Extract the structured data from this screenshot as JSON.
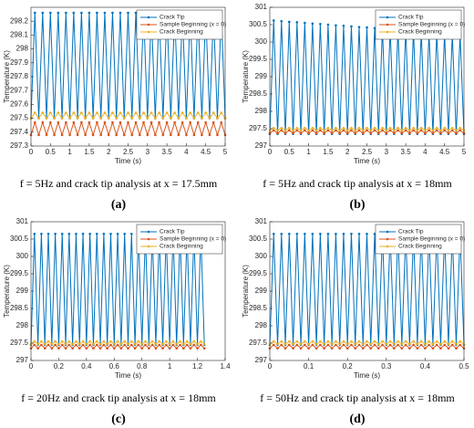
{
  "chart_data": [
    {
      "type": "line",
      "legend": "upper right",
      "grid": false,
      "xlabel": "Time (s)",
      "ylabel": "Temperature (K)",
      "caption": "f = 5Hz and crack tip analysis at x = 17.5mm",
      "label": "(a)",
      "xlim": [
        0,
        5
      ],
      "xticks": [
        0,
        0.5,
        1,
        1.5,
        2,
        2.5,
        3,
        3.5,
        4,
        4.5,
        5
      ],
      "ylim": [
        297.3,
        298.3
      ],
      "yticks": [
        297.3,
        297.4,
        297.5,
        297.6,
        297.7,
        297.8,
        297.9,
        298,
        298.1,
        298.2
      ],
      "x": [
        0,
        0.1,
        0.2,
        0.3,
        0.4,
        0.5,
        0.6,
        0.7,
        0.8,
        0.9,
        1,
        1.1,
        1.2,
        1.3,
        1.4,
        1.5,
        1.6,
        1.7,
        1.8,
        1.9,
        2,
        2.1,
        2.2,
        2.3,
        2.4,
        2.5,
        2.6,
        2.7,
        2.8,
        2.9,
        3,
        3.1,
        3.2,
        3.3,
        3.4,
        3.5,
        3.6,
        3.7,
        3.8,
        3.9,
        4,
        4.1,
        4.2,
        4.3,
        4.4,
        4.5,
        4.6,
        4.7,
        4.8,
        4.9,
        5
      ],
      "series": [
        {
          "name": "Crack Tip",
          "color": "#0072bd",
          "values": [
            297.5,
            298.26,
            297.5,
            298.26,
            297.5,
            298.26,
            297.5,
            298.26,
            297.5,
            298.26,
            297.5,
            298.26,
            297.5,
            298.26,
            297.5,
            298.26,
            297.5,
            298.26,
            297.5,
            298.26,
            297.5,
            298.26,
            297.5,
            298.26,
            297.5,
            298.26,
            297.5,
            298.26,
            297.5,
            298.26,
            297.5,
            298.26,
            297.5,
            298.26,
            297.5,
            298.26,
            297.5,
            298.26,
            297.5,
            298.26,
            297.5,
            298.26,
            297.5,
            298.26,
            297.5,
            298.26,
            297.5,
            298.26,
            297.5,
            298.26,
            297.5
          ]
        },
        {
          "name": "Sample Beginning (x = 0)",
          "color": "#d95319",
          "values": [
            297.38,
            297.47,
            297.38,
            297.47,
            297.38,
            297.47,
            297.38,
            297.47,
            297.38,
            297.47,
            297.38,
            297.47,
            297.38,
            297.47,
            297.38,
            297.47,
            297.38,
            297.47,
            297.38,
            297.47,
            297.38,
            297.47,
            297.38,
            297.47,
            297.38,
            297.47,
            297.38,
            297.47,
            297.38,
            297.47,
            297.38,
            297.47,
            297.38,
            297.47,
            297.38,
            297.47,
            297.38,
            297.47,
            297.38,
            297.47,
            297.38,
            297.47,
            297.38,
            297.47,
            297.38,
            297.47,
            297.38,
            297.47,
            297.38,
            297.47,
            297.38
          ]
        },
        {
          "name": "Crack Beginning",
          "color": "#edb120",
          "values": [
            297.5,
            297.54,
            297.5,
            297.54,
            297.5,
            297.54,
            297.5,
            297.54,
            297.5,
            297.54,
            297.5,
            297.54,
            297.5,
            297.54,
            297.5,
            297.54,
            297.5,
            297.54,
            297.5,
            297.54,
            297.5,
            297.54,
            297.5,
            297.54,
            297.5,
            297.54,
            297.5,
            297.54,
            297.5,
            297.54,
            297.5,
            297.54,
            297.5,
            297.54,
            297.5,
            297.54,
            297.5,
            297.54,
            297.5,
            297.54,
            297.5,
            297.54,
            297.5,
            297.54,
            297.5,
            297.54,
            297.5,
            297.54,
            297.5,
            297.54,
            297.5
          ]
        }
      ]
    },
    {
      "type": "line",
      "legend": "upper right",
      "grid": false,
      "xlabel": "Time (s)",
      "ylabel": "Temperature (K)",
      "caption": "f = 5Hz and crack tip analysis at x = 18mm",
      "label": "(b)",
      "xlim": [
        0,
        5
      ],
      "xticks": [
        0,
        0.5,
        1,
        1.5,
        2,
        2.5,
        3,
        3.5,
        4,
        4.5,
        5
      ],
      "ylim": [
        297,
        301
      ],
      "yticks": [
        297,
        297.5,
        298,
        298.5,
        299,
        299.5,
        300,
        300.5,
        301
      ],
      "x": [
        0,
        0.1,
        0.2,
        0.3,
        0.4,
        0.5,
        0.6,
        0.7,
        0.8,
        0.9,
        1,
        1.1,
        1.2,
        1.3,
        1.4,
        1.5,
        1.6,
        1.7,
        1.8,
        1.9,
        2,
        2.1,
        2.2,
        2.3,
        2.4,
        2.5,
        2.6,
        2.7,
        2.8,
        2.9,
        3,
        3.1,
        3.2,
        3.3,
        3.4,
        3.5,
        3.6,
        3.7,
        3.8,
        3.9,
        4,
        4.1,
        4.2,
        4.3,
        4.4,
        4.5,
        4.6,
        4.7,
        4.8,
        4.9,
        5
      ],
      "series": [
        {
          "name": "Crack Tip",
          "color": "#0072bd",
          "values": [
            297.35,
            300.62,
            297.35,
            300.6,
            297.35,
            300.58,
            297.35,
            300.57,
            297.35,
            300.55,
            297.35,
            300.53,
            297.35,
            300.52,
            297.35,
            300.5,
            297.35,
            300.48,
            297.35,
            300.47,
            297.35,
            300.45,
            297.35,
            300.43,
            297.35,
            300.42,
            297.35,
            300.4,
            297.35,
            300.38,
            297.35,
            300.37,
            297.35,
            300.35,
            297.35,
            300.33,
            297.35,
            300.32,
            297.35,
            300.3,
            297.35,
            300.28,
            297.35,
            300.27,
            297.35,
            300.25,
            297.35,
            300.23,
            297.35,
            300.22,
            297.35
          ]
        },
        {
          "name": "Sample Beginning (x = 0)",
          "color": "#d95319",
          "values": [
            297.37,
            297.45,
            297.37,
            297.45,
            297.37,
            297.45,
            297.37,
            297.45,
            297.37,
            297.45,
            297.37,
            297.45,
            297.37,
            297.45,
            297.37,
            297.45,
            297.37,
            297.45,
            297.37,
            297.45,
            297.37,
            297.45,
            297.37,
            297.45,
            297.37,
            297.45,
            297.37,
            297.45,
            297.37,
            297.45,
            297.37,
            297.45,
            297.37,
            297.45,
            297.37,
            297.45,
            297.37,
            297.45,
            297.37,
            297.45,
            297.37,
            297.45,
            297.37,
            297.45,
            297.37,
            297.45,
            297.37,
            297.45,
            297.37,
            297.45,
            297.37
          ]
        },
        {
          "name": "Crack Beginning",
          "color": "#edb120",
          "values": [
            297.45,
            297.52,
            297.45,
            297.52,
            297.45,
            297.52,
            297.45,
            297.52,
            297.45,
            297.52,
            297.45,
            297.52,
            297.45,
            297.52,
            297.45,
            297.52,
            297.45,
            297.52,
            297.45,
            297.52,
            297.45,
            297.52,
            297.45,
            297.52,
            297.45,
            297.52,
            297.45,
            297.52,
            297.45,
            297.52,
            297.45,
            297.52,
            297.45,
            297.52,
            297.45,
            297.52,
            297.45,
            297.52,
            297.45,
            297.52,
            297.45,
            297.52,
            297.45,
            297.52,
            297.45,
            297.52,
            297.45,
            297.52,
            297.45,
            297.52,
            297.45
          ]
        }
      ]
    },
    {
      "type": "line",
      "legend": "upper right",
      "grid": false,
      "xlabel": "Time (s)",
      "ylabel": "Temperature (K)",
      "caption": "f = 20Hz and crack tip analysis at x = 18mm",
      "label": "(c)",
      "xlim": [
        0,
        1.4
      ],
      "xticks": [
        0,
        0.2,
        0.4,
        0.6,
        0.8,
        1,
        1.2,
        1.4
      ],
      "ylim": [
        297,
        301
      ],
      "yticks": [
        297,
        297.5,
        298,
        298.5,
        299,
        299.5,
        300,
        300.5,
        301
      ],
      "x": [
        0,
        0.025,
        0.05,
        0.075,
        0.1,
        0.125,
        0.15,
        0.175,
        0.2,
        0.225,
        0.25,
        0.275,
        0.3,
        0.325,
        0.35,
        0.375,
        0.4,
        0.425,
        0.45,
        0.475,
        0.5,
        0.525,
        0.55,
        0.575,
        0.6,
        0.625,
        0.65,
        0.675,
        0.7,
        0.725,
        0.75,
        0.775,
        0.8,
        0.825,
        0.85,
        0.875,
        0.9,
        0.925,
        0.95,
        0.975,
        1,
        1.025,
        1.05,
        1.075,
        1.1,
        1.125,
        1.15,
        1.175,
        1.2,
        1.225,
        1.25
      ],
      "series": [
        {
          "name": "Crack Tip",
          "color": "#0072bd",
          "values": [
            297.45,
            300.65,
            297.45,
            300.65,
            297.45,
            300.65,
            297.45,
            300.65,
            297.45,
            300.65,
            297.45,
            300.65,
            297.45,
            300.65,
            297.45,
            300.65,
            297.45,
            300.65,
            297.45,
            300.65,
            297.45,
            300.65,
            297.45,
            300.65,
            297.45,
            300.65,
            297.45,
            300.65,
            297.45,
            300.65,
            297.45,
            300.65,
            297.45,
            300.65,
            297.45,
            300.65,
            297.45,
            300.65,
            297.45,
            300.65,
            297.45,
            300.65,
            297.45,
            300.65,
            297.45,
            300.65,
            297.45,
            300.65,
            297.45,
            300.65,
            297.45
          ]
        },
        {
          "name": "Sample Beginning (x = 0)",
          "color": "#d95319",
          "values": [
            297.35,
            297.45,
            297.35,
            297.45,
            297.35,
            297.45,
            297.35,
            297.45,
            297.35,
            297.45,
            297.35,
            297.45,
            297.35,
            297.45,
            297.35,
            297.45,
            297.35,
            297.45,
            297.35,
            297.45,
            297.35,
            297.45,
            297.35,
            297.45,
            297.35,
            297.45,
            297.35,
            297.45,
            297.35,
            297.45,
            297.35,
            297.45,
            297.35,
            297.45,
            297.35,
            297.45,
            297.35,
            297.45,
            297.35,
            297.45,
            297.35,
            297.45,
            297.35,
            297.45,
            297.35,
            297.45,
            297.35,
            297.45,
            297.35,
            297.45,
            297.35
          ]
        },
        {
          "name": "Crack Beginning",
          "color": "#edb120",
          "values": [
            297.47,
            297.55,
            297.47,
            297.55,
            297.47,
            297.55,
            297.47,
            297.55,
            297.47,
            297.55,
            297.47,
            297.55,
            297.47,
            297.55,
            297.47,
            297.55,
            297.47,
            297.55,
            297.47,
            297.55,
            297.47,
            297.55,
            297.47,
            297.55,
            297.47,
            297.55,
            297.47,
            297.55,
            297.47,
            297.55,
            297.47,
            297.55,
            297.47,
            297.55,
            297.47,
            297.55,
            297.47,
            297.55,
            297.47,
            297.55,
            297.47,
            297.55,
            297.47,
            297.55,
            297.47,
            297.55,
            297.47,
            297.55,
            297.47,
            297.55,
            297.47
          ]
        }
      ]
    },
    {
      "type": "line",
      "legend": "upper right",
      "grid": false,
      "xlabel": "Time (s)",
      "ylabel": "Temperature (K)",
      "caption": "f = 50Hz and crack tip analysis at x = 18mm",
      "label": "(d)",
      "xlim": [
        0,
        0.5
      ],
      "xticks": [
        0,
        0.1,
        0.2,
        0.3,
        0.4,
        0.5
      ],
      "ylim": [
        297,
        301
      ],
      "yticks": [
        297,
        297.5,
        298,
        298.5,
        299,
        299.5,
        300,
        300.5,
        301
      ],
      "x": [
        0,
        0.01,
        0.02,
        0.03,
        0.04,
        0.05,
        0.06,
        0.07,
        0.08,
        0.09,
        0.1,
        0.11,
        0.12,
        0.13,
        0.14,
        0.15,
        0.16,
        0.17,
        0.18,
        0.19,
        0.2,
        0.21,
        0.22,
        0.23,
        0.24,
        0.25,
        0.26,
        0.27,
        0.28,
        0.29,
        0.3,
        0.31,
        0.32,
        0.33,
        0.34,
        0.35,
        0.36,
        0.37,
        0.38,
        0.39,
        0.4,
        0.41,
        0.42,
        0.43,
        0.44,
        0.45,
        0.46,
        0.47,
        0.48,
        0.49,
        0.5
      ],
      "series": [
        {
          "name": "Crack Tip",
          "color": "#0072bd",
          "values": [
            297.45,
            300.65,
            297.45,
            300.65,
            297.45,
            300.65,
            297.45,
            300.65,
            297.45,
            300.65,
            297.45,
            300.65,
            297.45,
            300.65,
            297.45,
            300.65,
            297.45,
            300.65,
            297.45,
            300.65,
            297.45,
            300.65,
            297.45,
            300.65,
            297.45,
            300.65,
            297.45,
            300.65,
            297.45,
            300.65,
            297.45,
            300.65,
            297.45,
            300.65,
            297.45,
            300.65,
            297.45,
            300.65,
            297.45,
            300.65,
            297.45,
            300.65,
            297.45,
            300.65,
            297.45,
            300.65,
            297.45,
            300.65,
            297.45,
            300.65,
            297.45
          ]
        },
        {
          "name": "Sample Beginning (x = 0)",
          "color": "#d95319",
          "values": [
            297.35,
            297.45,
            297.35,
            297.45,
            297.35,
            297.45,
            297.35,
            297.45,
            297.35,
            297.45,
            297.35,
            297.45,
            297.35,
            297.45,
            297.35,
            297.45,
            297.35,
            297.45,
            297.35,
            297.45,
            297.35,
            297.45,
            297.35,
            297.45,
            297.35,
            297.45,
            297.35,
            297.45,
            297.35,
            297.45,
            297.35,
            297.45,
            297.35,
            297.45,
            297.35,
            297.45,
            297.35,
            297.45,
            297.35,
            297.45,
            297.35,
            297.45,
            297.35,
            297.45,
            297.35,
            297.45,
            297.35,
            297.45,
            297.35,
            297.45,
            297.35
          ]
        },
        {
          "name": "Crack Beginning",
          "color": "#edb120",
          "values": [
            297.47,
            297.55,
            297.47,
            297.55,
            297.47,
            297.55,
            297.47,
            297.55,
            297.47,
            297.55,
            297.47,
            297.55,
            297.47,
            297.55,
            297.47,
            297.55,
            297.47,
            297.55,
            297.47,
            297.55,
            297.47,
            297.55,
            297.47,
            297.55,
            297.47,
            297.55,
            297.47,
            297.55,
            297.47,
            297.55,
            297.47,
            297.55,
            297.47,
            297.55,
            297.47,
            297.55,
            297.47,
            297.55,
            297.47,
            297.55,
            297.47,
            297.55,
            297.47,
            297.55,
            297.47,
            297.55,
            297.47,
            297.55,
            297.47,
            297.55,
            297.47
          ]
        }
      ]
    }
  ]
}
